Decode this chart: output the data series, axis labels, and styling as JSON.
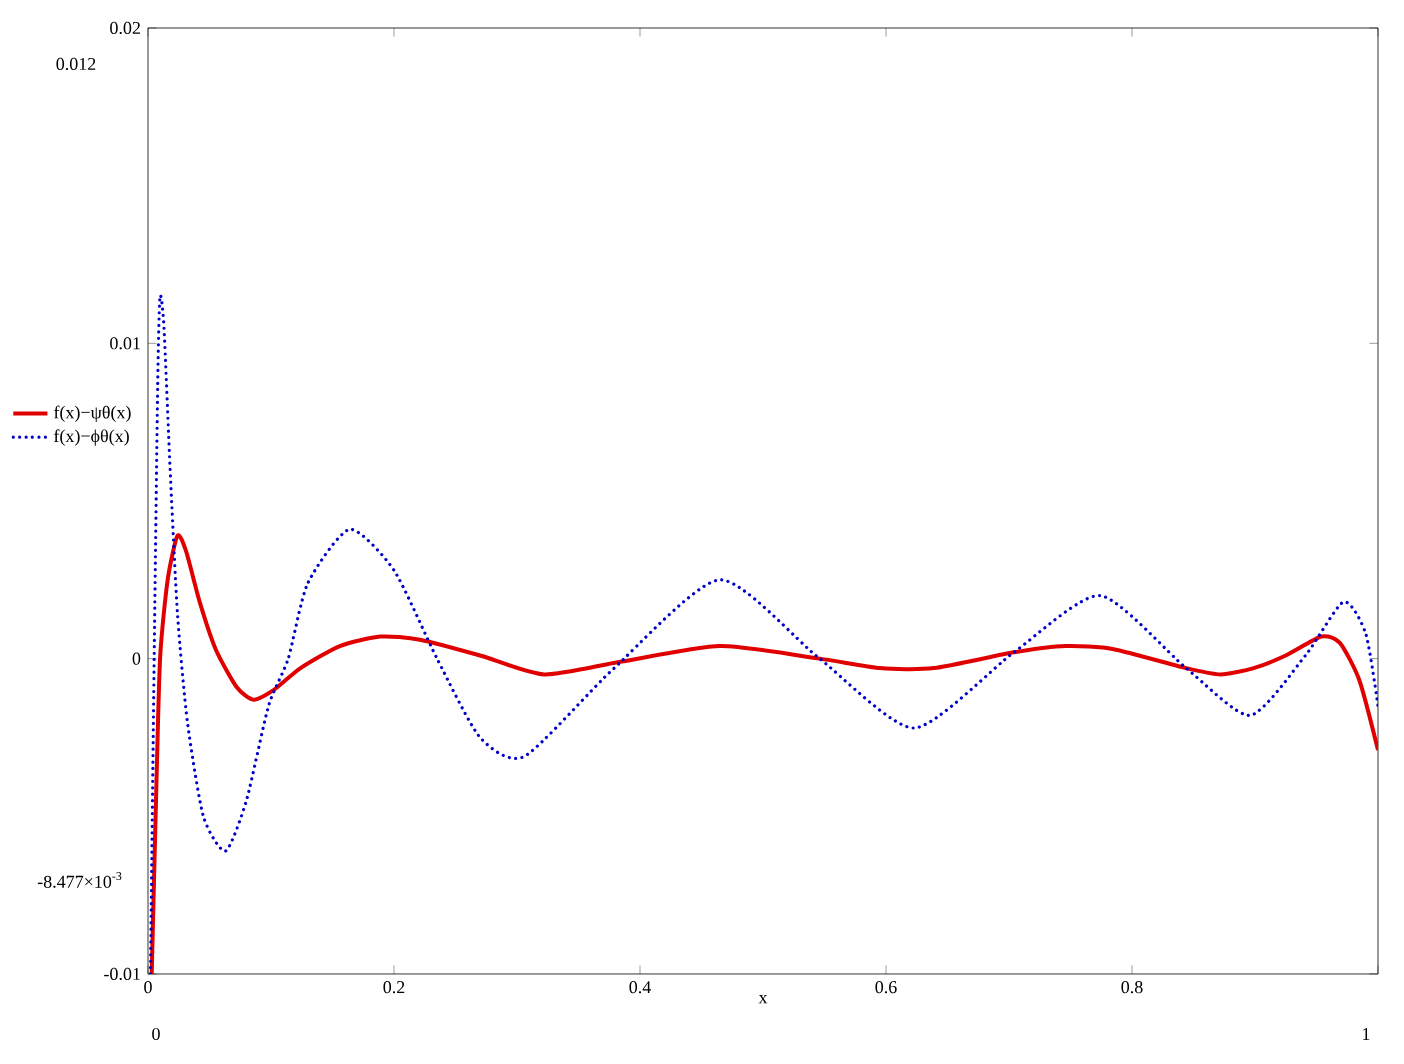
{
  "chart_data": {
    "type": "line",
    "xlabel": "x",
    "xlim": [
      0,
      1
    ],
    "ylim": [
      -0.01,
      0.02
    ],
    "xticks": [
      0,
      0.2,
      0.4,
      0.6,
      0.8,
      {
        "value": 1,
        "label": null
      }
    ],
    "yticks": [
      -0.01,
      0,
      0.01,
      0.02
    ],
    "grid": false,
    "legend": "left",
    "marker": "none",
    "annotations": [
      "0.012",
      "-8.477×10$^{-3}$",
      "0",
      "1"
    ],
    "series": [
      {
        "name": "f(x)−ψθ(x)",
        "color": "#e00000",
        "line_style": "solid",
        "x": [
          0.003,
          0.0065,
          0.0098,
          0.016,
          0.024,
          0.031,
          0.042,
          0.055,
          0.072,
          0.086,
          0.102,
          0.124,
          0.156,
          0.189,
          0.221,
          0.27,
          0.322,
          0.384,
          0.465,
          0.546,
          0.595,
          0.639,
          0.704,
          0.746,
          0.785,
          0.844,
          0.872,
          0.899,
          0.925,
          0.954,
          0.969,
          0.985,
          1.0
        ],
        "values": [
          -0.01,
          -0.0045,
          0.0,
          0.0025,
          0.0039,
          0.0034,
          0.0018,
          0.0003,
          -0.0009,
          -0.0013,
          -0.001,
          -0.0003,
          0.0004,
          0.0007,
          0.0006,
          0.0001,
          -0.0005,
          -0.0001,
          0.0004,
          0.0,
          -0.0003,
          -0.0003,
          0.0002,
          0.0004,
          0.0003,
          -0.0003,
          -0.0005,
          -0.0003,
          0.0001,
          0.0007,
          0.0005,
          -0.0007,
          -0.0029
        ]
      },
      {
        "name": "f(x)−ϕθ(x)",
        "color": "#0000c8",
        "line_style": "dotted",
        "x": [
          0.002,
          0.005,
          0.008,
          0.0098,
          0.013,
          0.018,
          0.024,
          0.032,
          0.045,
          0.063,
          0.08,
          0.098,
          0.114,
          0.13,
          0.164,
          0.2,
          0.235,
          0.27,
          0.306,
          0.379,
          0.465,
          0.546,
          0.623,
          0.704,
          0.774,
          0.844,
          0.896,
          0.941,
          0.972,
          0.99,
          1.0
        ],
        "values": [
          -0.01,
          0.0,
          0.009,
          0.0115,
          0.0105,
          0.006,
          0.0014,
          -0.002,
          -0.005,
          -0.0061,
          -0.0045,
          -0.0015,
          0.0,
          0.0024,
          0.0041,
          0.0028,
          0.0,
          -0.0025,
          -0.0031,
          -0.0003,
          0.0025,
          0.0,
          -0.0022,
          0.0002,
          0.002,
          -0.0003,
          -0.0018,
          0.0001,
          0.0018,
          0.0008,
          -0.0015
        ]
      }
    ]
  }
}
